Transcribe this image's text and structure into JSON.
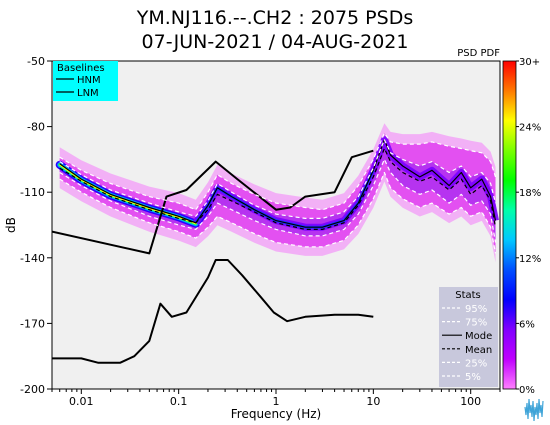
{
  "title": {
    "line1": "YM.NJ116.--.CH2 : 2075 PSDs",
    "line2": "07-JUN-2021 / 04-AUG-2021"
  },
  "colorbar_title": "PSD PDF",
  "colors": {
    "baseline_box": "#00ffff",
    "stats_box": "#c8c8dc",
    "plot_bg": "#f0f0f0",
    "psd_cloud": "#e040f0",
    "psd_core": "#7a00ff"
  },
  "colorbar": {
    "ticks": [
      "30+",
      "24%",
      "18%",
      "12%",
      "6%",
      "0%"
    ],
    "stops": [
      "#ff0000",
      "#ff7a00",
      "#ffff00",
      "#7aff00",
      "#00ff00",
      "#00ffaa",
      "#00c8ff",
      "#0050ff",
      "#0000ff",
      "#8000ff",
      "#c000ff",
      "#ff80ff"
    ]
  },
  "baselines_legend": {
    "title": "Baselines",
    "items": [
      "HNM",
      "LNM"
    ]
  },
  "stats_legend": {
    "title": "Stats",
    "items": [
      {
        "label": "95%",
        "style": "dashed",
        "color": "#ffffff"
      },
      {
        "label": "75%",
        "style": "dashed",
        "color": "#ffffff"
      },
      {
        "label": "Mode",
        "style": "solid",
        "color": "#000000"
      },
      {
        "label": "Mean",
        "style": "dashed",
        "color": "#000000"
      },
      {
        "label": "25%",
        "style": "dashed",
        "color": "#ffffff"
      },
      {
        "label": "5%",
        "style": "dashed",
        "color": "#ffffff"
      }
    ]
  },
  "chart_data": {
    "type": "line",
    "xlabel": "Frequency (Hz)",
    "ylabel": "dB",
    "xscale": "log",
    "xlim": [
      0.005,
      200
    ],
    "ylim": [
      -200,
      -50
    ],
    "xticks": [
      {
        "value": 0.01,
        "label": "0.01"
      },
      {
        "value": 0.1,
        "label": "0.1"
      },
      {
        "value": 1,
        "label": "1"
      },
      {
        "value": 10,
        "label": "10"
      },
      {
        "value": 100,
        "label": "100"
      }
    ],
    "yticks": [
      -50,
      -80,
      -110,
      -140,
      -170,
      -200
    ],
    "series": [
      {
        "name": "HNM",
        "style": "solid",
        "color": "#000000",
        "points": [
          [
            0.005,
            -128
          ],
          [
            0.05,
            -138
          ],
          [
            0.075,
            -112
          ],
          [
            0.12,
            -109
          ],
          [
            0.24,
            -96
          ],
          [
            0.4,
            -104
          ],
          [
            1,
            -118
          ],
          [
            1.4,
            -117
          ],
          [
            2,
            -112
          ],
          [
            4,
            -110
          ],
          [
            6,
            -94
          ],
          [
            10,
            -91
          ]
        ]
      },
      {
        "name": "LNM",
        "style": "solid",
        "color": "#000000",
        "points": [
          [
            0.005,
            -186
          ],
          [
            0.01,
            -186
          ],
          [
            0.015,
            -188
          ],
          [
            0.025,
            -188
          ],
          [
            0.035,
            -185
          ],
          [
            0.05,
            -178
          ],
          [
            0.065,
            -161
          ],
          [
            0.085,
            -167
          ],
          [
            0.12,
            -165
          ],
          [
            0.2,
            -149
          ],
          [
            0.24,
            -141
          ],
          [
            0.32,
            -141
          ],
          [
            0.45,
            -148
          ],
          [
            0.7,
            -158
          ],
          [
            0.95,
            -165
          ],
          [
            1.3,
            -169
          ],
          [
            2,
            -167
          ],
          [
            4,
            -166
          ],
          [
            7,
            -166
          ],
          [
            10,
            -167
          ]
        ]
      },
      {
        "name": "Mode",
        "style": "solid",
        "color": "#000000",
        "points": [
          [
            0.006,
            -97
          ],
          [
            0.01,
            -104
          ],
          [
            0.02,
            -111
          ],
          [
            0.05,
            -117
          ],
          [
            0.1,
            -121
          ],
          [
            0.15,
            -124
          ],
          [
            0.2,
            -116
          ],
          [
            0.25,
            -108
          ],
          [
            0.35,
            -112
          ],
          [
            0.6,
            -118
          ],
          [
            1,
            -123
          ],
          [
            2,
            -126
          ],
          [
            3,
            -126
          ],
          [
            5,
            -123
          ],
          [
            7,
            -115
          ],
          [
            10,
            -100
          ],
          [
            13,
            -86
          ],
          [
            15,
            -93
          ],
          [
            20,
            -98
          ],
          [
            30,
            -103
          ],
          [
            40,
            -100
          ],
          [
            60,
            -107
          ],
          [
            80,
            -101
          ],
          [
            100,
            -108
          ],
          [
            130,
            -104
          ],
          [
            160,
            -112
          ],
          [
            180,
            -123
          ]
        ]
      },
      {
        "name": "Mean",
        "style": "dashed",
        "color": "#000000",
        "points": [
          [
            0.006,
            -99
          ],
          [
            0.01,
            -105
          ],
          [
            0.02,
            -112
          ],
          [
            0.05,
            -118
          ],
          [
            0.1,
            -122
          ],
          [
            0.15,
            -124
          ],
          [
            0.2,
            -118
          ],
          [
            0.25,
            -111
          ],
          [
            0.35,
            -114
          ],
          [
            0.6,
            -119
          ],
          [
            1,
            -124
          ],
          [
            2,
            -127
          ],
          [
            3,
            -127
          ],
          [
            5,
            -124
          ],
          [
            7,
            -116
          ],
          [
            10,
            -103
          ],
          [
            13,
            -90
          ],
          [
            15,
            -96
          ],
          [
            20,
            -101
          ],
          [
            30,
            -105
          ],
          [
            40,
            -103
          ],
          [
            60,
            -109
          ],
          [
            80,
            -104
          ],
          [
            100,
            -111
          ],
          [
            130,
            -107
          ],
          [
            160,
            -114
          ],
          [
            180,
            -126
          ]
        ]
      },
      {
        "name": "95%",
        "style": "dashed",
        "color": "#ffffff",
        "points": [
          [
            0.006,
            -94
          ],
          [
            0.01,
            -100
          ],
          [
            0.02,
            -106
          ],
          [
            0.05,
            -112
          ],
          [
            0.1,
            -115
          ],
          [
            0.15,
            -118
          ],
          [
            0.2,
            -110
          ],
          [
            0.25,
            -102
          ],
          [
            0.35,
            -106
          ],
          [
            0.6,
            -111
          ],
          [
            1,
            -115
          ],
          [
            2,
            -117
          ],
          [
            3,
            -118
          ],
          [
            5,
            -115
          ],
          [
            7,
            -107
          ],
          [
            10,
            -95
          ],
          [
            13,
            -83
          ],
          [
            15,
            -87
          ],
          [
            20,
            -88
          ],
          [
            30,
            -88
          ],
          [
            40,
            -87
          ],
          [
            60,
            -89
          ],
          [
            80,
            -90
          ],
          [
            100,
            -91
          ],
          [
            130,
            -92
          ],
          [
            160,
            -96
          ],
          [
            180,
            -103
          ]
        ]
      },
      {
        "name": "75%",
        "style": "dashed",
        "color": "#ffffff",
        "points": [
          [
            0.006,
            -96
          ],
          [
            0.01,
            -102
          ],
          [
            0.02,
            -109
          ],
          [
            0.05,
            -115
          ],
          [
            0.1,
            -119
          ],
          [
            0.15,
            -121
          ],
          [
            0.2,
            -114
          ],
          [
            0.25,
            -106
          ],
          [
            0.35,
            -110
          ],
          [
            0.6,
            -116
          ],
          [
            1,
            -120
          ],
          [
            2,
            -122
          ],
          [
            3,
            -122
          ],
          [
            5,
            -119
          ],
          [
            7,
            -112
          ],
          [
            10,
            -99
          ],
          [
            13,
            -86
          ],
          [
            15,
            -92
          ],
          [
            20,
            -95
          ],
          [
            30,
            -98
          ],
          [
            40,
            -96
          ],
          [
            60,
            -101
          ],
          [
            80,
            -98
          ],
          [
            100,
            -103
          ],
          [
            130,
            -101
          ],
          [
            160,
            -106
          ],
          [
            180,
            -115
          ]
        ]
      },
      {
        "name": "25%",
        "style": "dashed",
        "color": "#ffffff",
        "points": [
          [
            0.006,
            -101
          ],
          [
            0.01,
            -107
          ],
          [
            0.02,
            -114
          ],
          [
            0.05,
            -121
          ],
          [
            0.1,
            -125
          ],
          [
            0.15,
            -127
          ],
          [
            0.2,
            -121
          ],
          [
            0.25,
            -115
          ],
          [
            0.35,
            -118
          ],
          [
            0.6,
            -123
          ],
          [
            1,
            -127
          ],
          [
            2,
            -130
          ],
          [
            3,
            -130
          ],
          [
            5,
            -127
          ],
          [
            7,
            -120
          ],
          [
            10,
            -107
          ],
          [
            13,
            -95
          ],
          [
            15,
            -101
          ],
          [
            20,
            -107
          ],
          [
            30,
            -111
          ],
          [
            40,
            -109
          ],
          [
            60,
            -115
          ],
          [
            80,
            -111
          ],
          [
            100,
            -116
          ],
          [
            130,
            -114
          ],
          [
            160,
            -120
          ],
          [
            180,
            -133
          ]
        ]
      },
      {
        "name": "5%",
        "style": "dashed",
        "color": "#ffffff",
        "points": [
          [
            0.006,
            -104
          ],
          [
            0.01,
            -110
          ],
          [
            0.02,
            -117
          ],
          [
            0.05,
            -124
          ],
          [
            0.1,
            -128
          ],
          [
            0.15,
            -131
          ],
          [
            0.2,
            -126
          ],
          [
            0.25,
            -121
          ],
          [
            0.35,
            -124
          ],
          [
            0.6,
            -129
          ],
          [
            1,
            -133
          ],
          [
            2,
            -135
          ],
          [
            3,
            -135
          ],
          [
            5,
            -132
          ],
          [
            7,
            -125
          ],
          [
            10,
            -113
          ],
          [
            13,
            -101
          ],
          [
            15,
            -108
          ],
          [
            20,
            -113
          ],
          [
            30,
            -117
          ],
          [
            40,
            -115
          ],
          [
            60,
            -120
          ],
          [
            80,
            -117
          ],
          [
            100,
            -121
          ],
          [
            130,
            -119
          ],
          [
            160,
            -126
          ],
          [
            180,
            -138
          ]
        ]
      }
    ]
  }
}
